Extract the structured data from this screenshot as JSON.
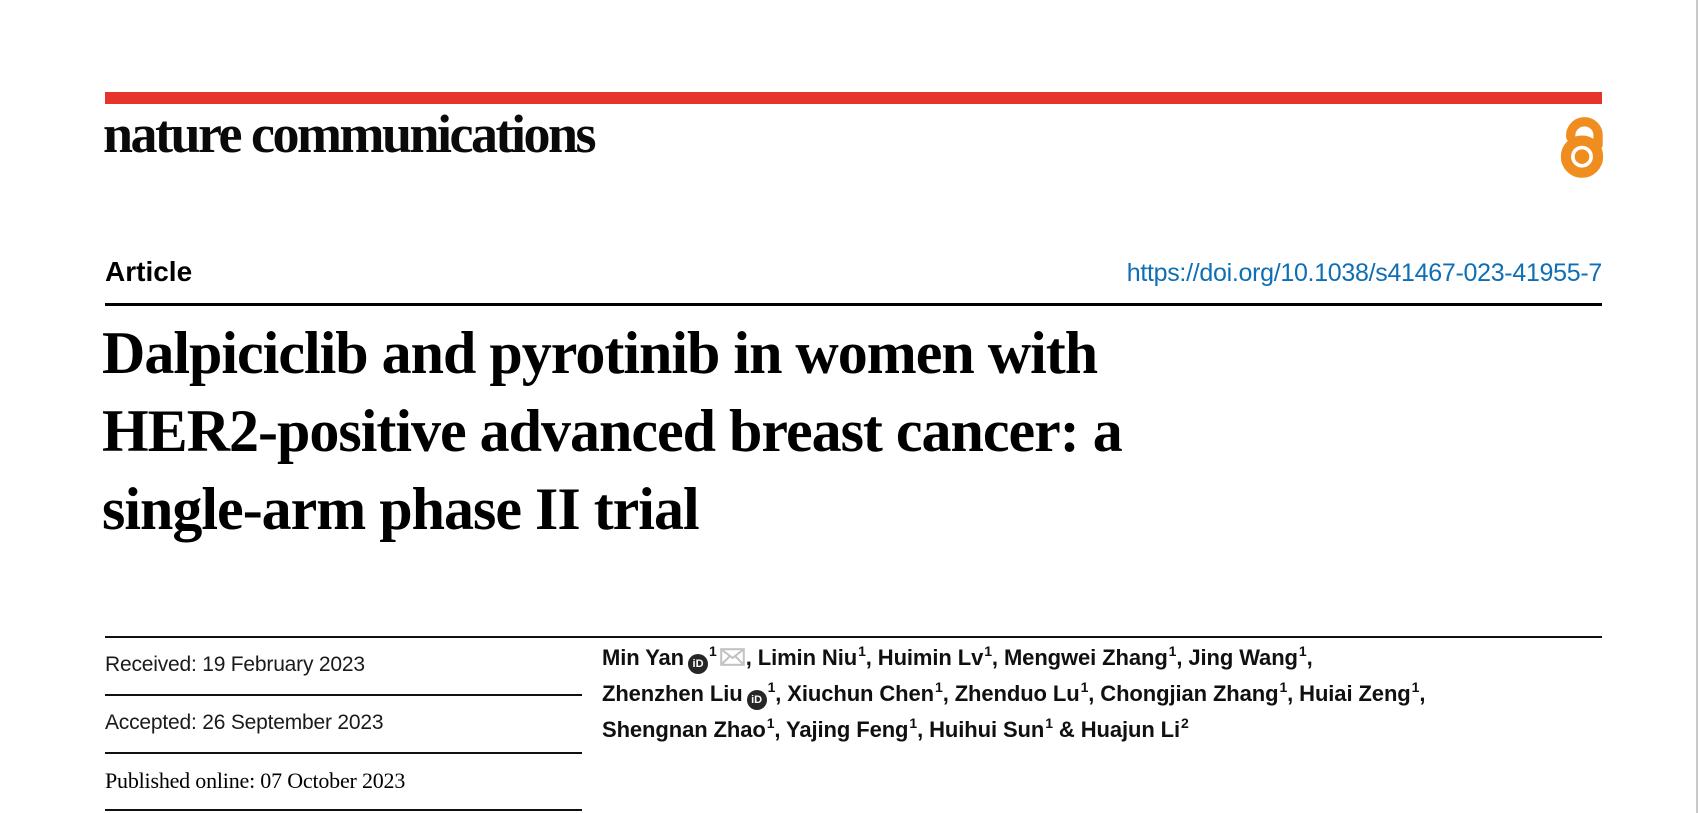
{
  "masthead": {
    "logo_text": "nature communications",
    "accent_color": "#e6342c",
    "open_access_icon": "open-padlock",
    "open_access_color": "#ef8d1f"
  },
  "article_header": {
    "type_label": "Article",
    "doi_link": "https://doi.org/10.1038/s41467-023-41955-7",
    "doi_color": "#0f6eb4",
    "title_lines": [
      "Dalpiciclib and pyrotinib in women with",
      "HER2-positive advanced breast cancer: a",
      "single-arm phase II trial"
    ]
  },
  "dates": {
    "received": "Received: 19 February 2023",
    "accepted": "Accepted: 26 September 2023",
    "published": "Published online: 07 October 2023"
  },
  "authors": {
    "orcid_badge_text": "iD",
    "items": [
      {
        "name": "Min Yan",
        "orcid": true,
        "sup": "1",
        "email": true,
        "sep": ", "
      },
      {
        "name": "Limin Niu",
        "sup": "1",
        "sep": ", "
      },
      {
        "name": "Huimin Lv",
        "sup": "1",
        "sep": ", "
      },
      {
        "name": "Mengwei Zhang",
        "sup": "1",
        "sep": ", "
      },
      {
        "name": "Jing Wang",
        "sup": "1",
        "sep": ",",
        "break": true
      },
      {
        "name": "Zhenzhen Liu",
        "orcid": true,
        "sup": "1",
        "sep": ", "
      },
      {
        "name": "Xiuchun Chen",
        "sup": "1",
        "sep": ", "
      },
      {
        "name": "Zhenduo Lu",
        "sup": "1",
        "sep": ", "
      },
      {
        "name": "Chongjian Zhang",
        "sup": "1",
        "sep": ", "
      },
      {
        "name": "Huiai Zeng",
        "sup": "1",
        "sep": ",",
        "break": true
      },
      {
        "name": "Shengnan Zhao",
        "sup": "1",
        "sep": ", "
      },
      {
        "name": "Yajing Feng",
        "sup": "1",
        "sep": ", "
      },
      {
        "name": "Huihui Sun",
        "sup": "1",
        "sep": " & "
      },
      {
        "name": "Huajun Li",
        "sup": "2",
        "sep": ""
      }
    ]
  }
}
